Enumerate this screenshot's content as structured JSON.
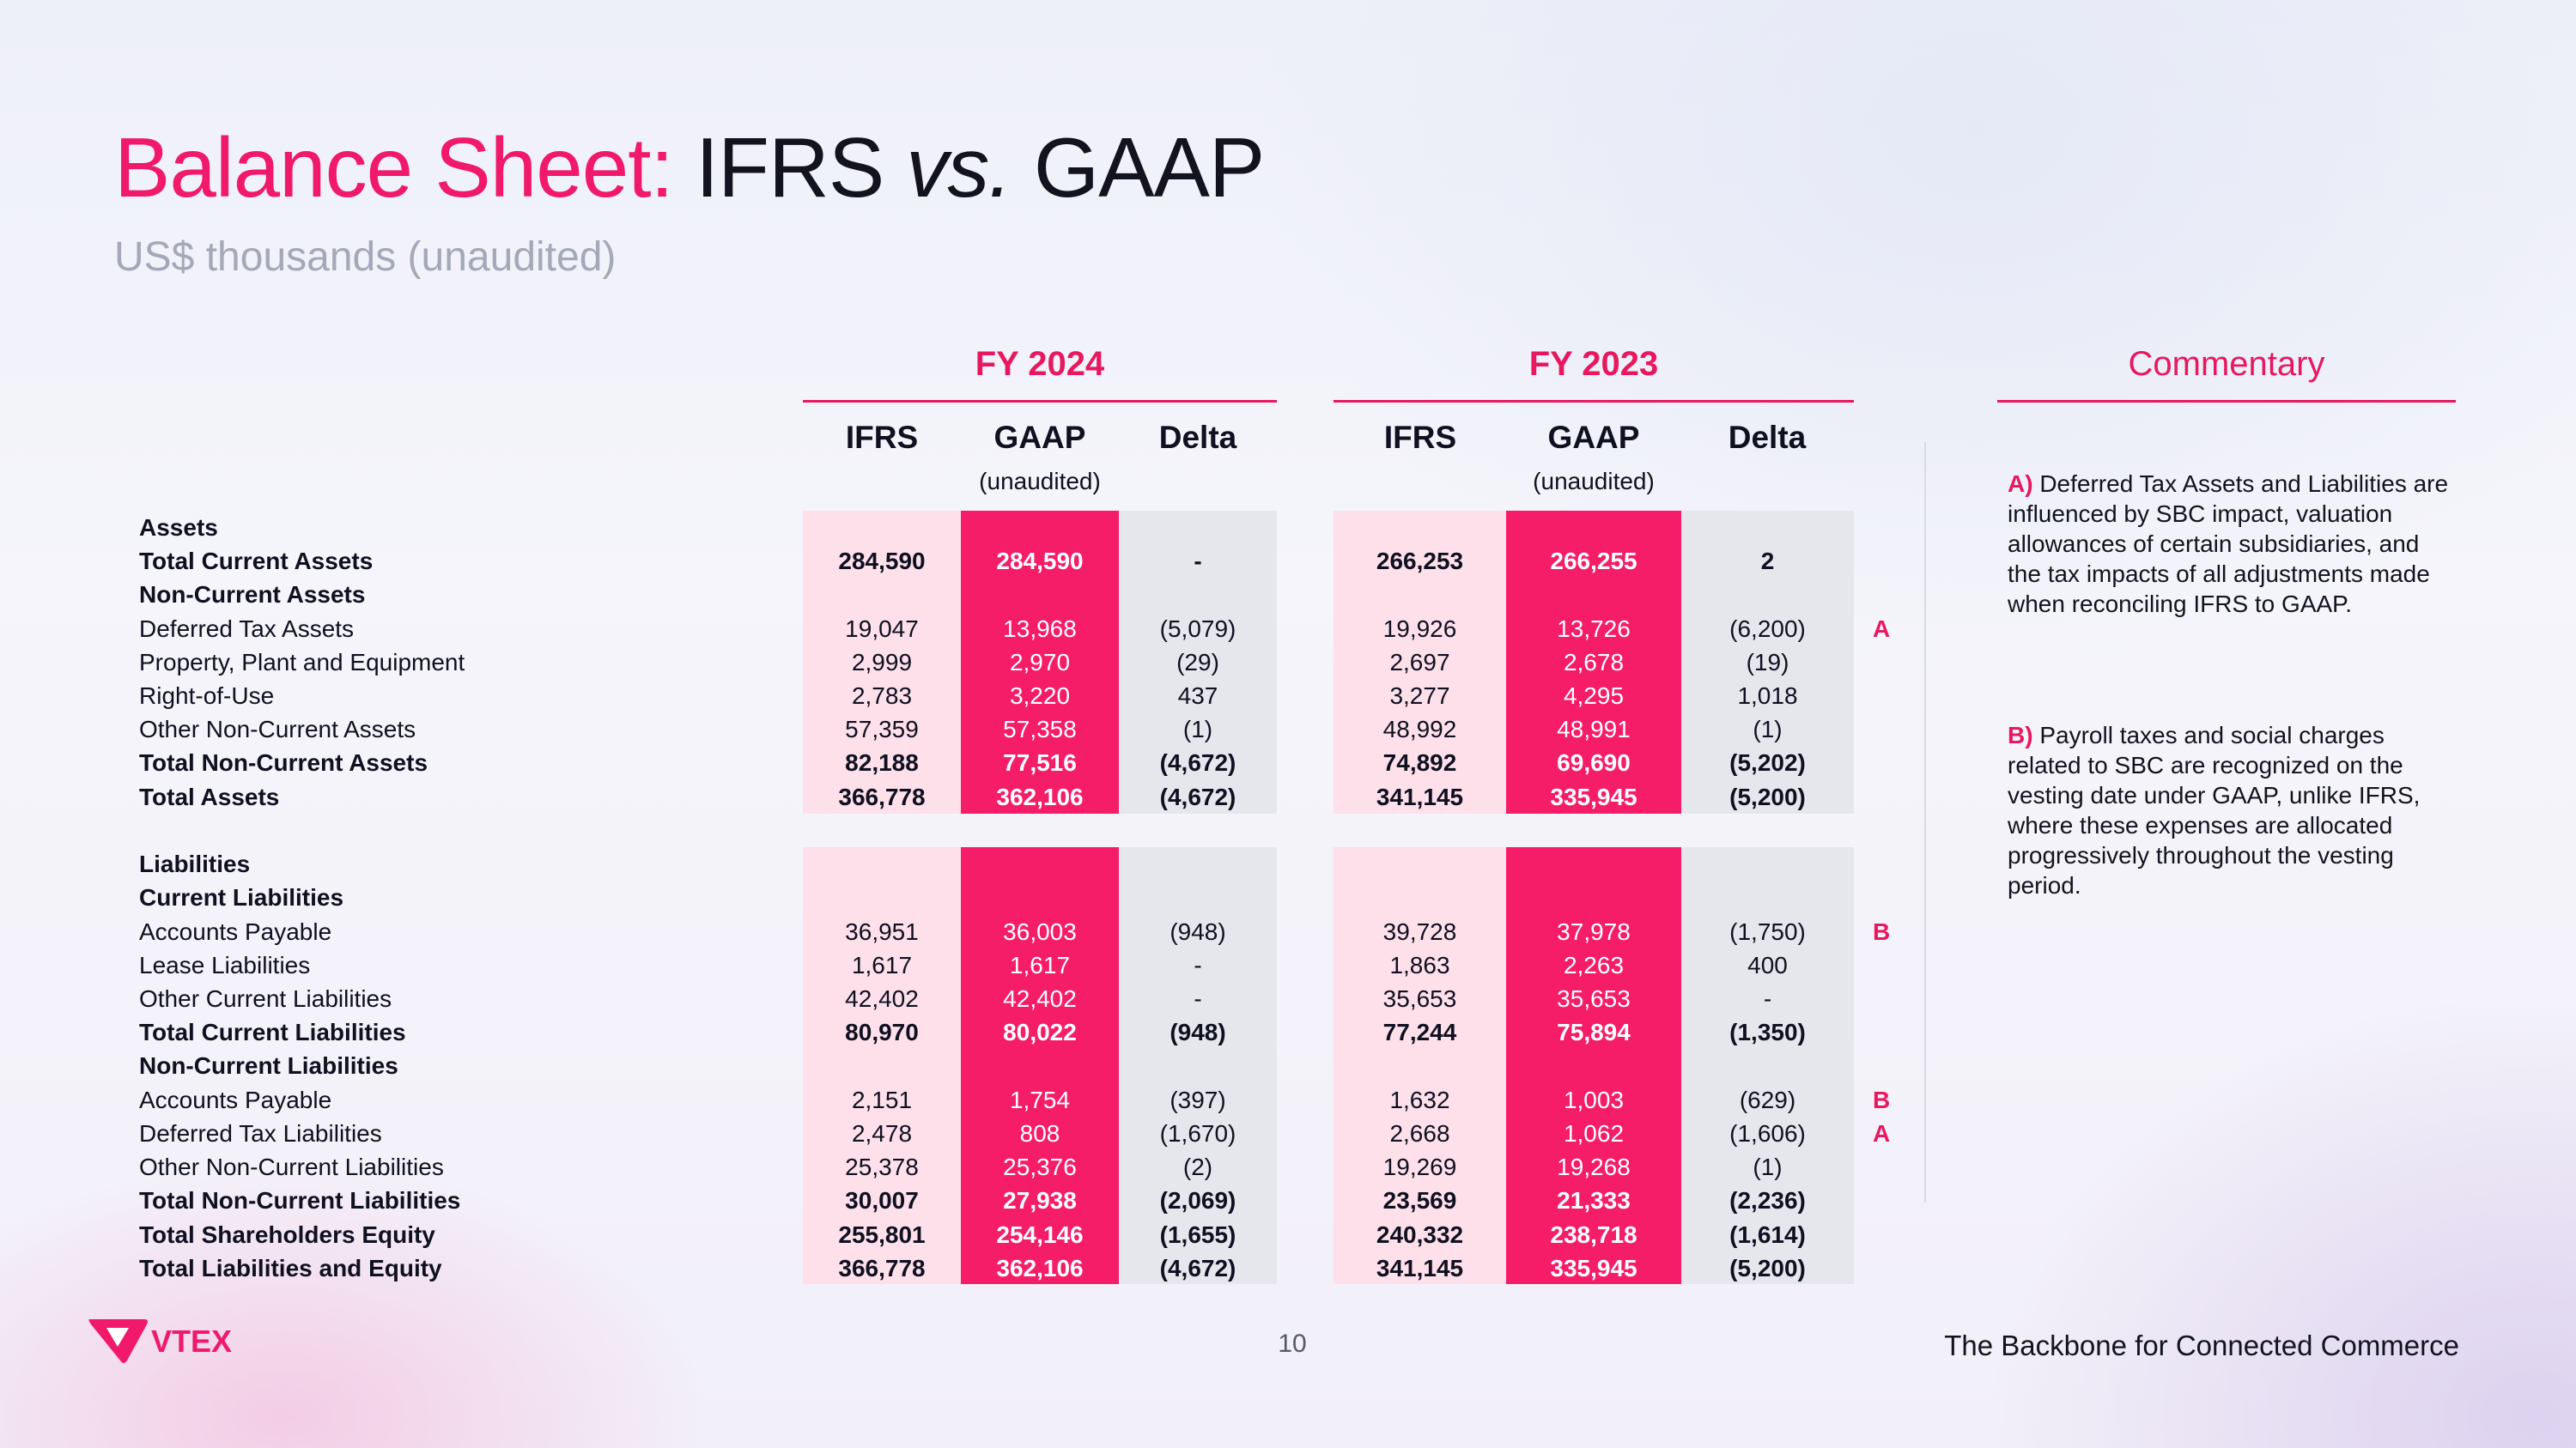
{
  "title": {
    "highlight": "Balance Sheet:",
    "part1": "IFRS",
    "vs": "vs.",
    "part2": "GAAP"
  },
  "subtitle": "US$ thousands (unaudited)",
  "periods": [
    {
      "label": "FY 2024",
      "cols": [
        "IFRS",
        "GAAP",
        "Delta"
      ],
      "gaap_note": "(unaudited)"
    },
    {
      "label": "FY 2023",
      "cols": [
        "IFRS",
        "GAAP",
        "Delta"
      ],
      "gaap_note": "(unaudited)"
    }
  ],
  "rows": [
    {
      "label": "Assets",
      "bold": true,
      "v": [
        "",
        "",
        "",
        "",
        "",
        ""
      ],
      "note": ""
    },
    {
      "label": "Total Current Assets",
      "bold": true,
      "v": [
        "284,590",
        "284,590",
        "-",
        "266,253",
        "266,255",
        "2"
      ],
      "note": ""
    },
    {
      "label": "Non-Current Assets",
      "bold": true,
      "v": [
        "",
        "",
        "",
        "",
        "",
        ""
      ],
      "note": ""
    },
    {
      "label": "Deferred Tax Assets",
      "bold": false,
      "v": [
        "19,047",
        "13,968",
        "(5,079)",
        "19,926",
        "13,726",
        "(6,200)"
      ],
      "note": "A"
    },
    {
      "label": "Property, Plant and Equipment",
      "bold": false,
      "v": [
        "2,999",
        "2,970",
        "(29)",
        "2,697",
        "2,678",
        "(19)"
      ],
      "note": ""
    },
    {
      "label": "Right-of-Use",
      "bold": false,
      "v": [
        "2,783",
        "3,220",
        "437",
        "3,277",
        "4,295",
        "1,018"
      ],
      "note": ""
    },
    {
      "label": "Other Non-Current Assets",
      "bold": false,
      "v": [
        "57,359",
        "57,358",
        "(1)",
        "48,992",
        "48,991",
        "(1)"
      ],
      "note": ""
    },
    {
      "label": "Total Non-Current Assets",
      "bold": true,
      "v": [
        "82,188",
        "77,516",
        "(4,672)",
        "74,892",
        "69,690",
        "(5,202)"
      ],
      "note": ""
    },
    {
      "label": "Total Assets",
      "bold": true,
      "v": [
        "366,778",
        "362,106",
        "(4,672)",
        "341,145",
        "335,945",
        "(5,200)"
      ],
      "note": ""
    },
    {
      "label": "Liabilities",
      "bold": true,
      "v": [
        "",
        "",
        "",
        "",
        "",
        ""
      ],
      "note": ""
    },
    {
      "label": "Current Liabilities",
      "bold": true,
      "v": [
        "",
        "",
        "",
        "",
        "",
        ""
      ],
      "note": ""
    },
    {
      "label": "Accounts Payable",
      "bold": false,
      "v": [
        "36,951",
        "36,003",
        "(948)",
        "39,728",
        "37,978",
        "(1,750)"
      ],
      "note": "B"
    },
    {
      "label": "Lease Liabilities",
      "bold": false,
      "v": [
        "1,617",
        "1,617",
        "-",
        "1,863",
        "2,263",
        "400"
      ],
      "note": ""
    },
    {
      "label": "Other Current Liabilities",
      "bold": false,
      "v": [
        "42,402",
        "42,402",
        "-",
        "35,653",
        "35,653",
        "-"
      ],
      "note": ""
    },
    {
      "label": "Total Current Liabilities",
      "bold": true,
      "v": [
        "80,970",
        "80,022",
        "(948)",
        "77,244",
        "75,894",
        "(1,350)"
      ],
      "note": ""
    },
    {
      "label": "Non-Current Liabilities",
      "bold": true,
      "v": [
        "",
        "",
        "",
        "",
        "",
        ""
      ],
      "note": ""
    },
    {
      "label": "Accounts Payable",
      "bold": false,
      "v": [
        "2,151",
        "1,754",
        "(397)",
        "1,632",
        "1,003",
        "(629)"
      ],
      "note": "B"
    },
    {
      "label": "Deferred Tax Liabilities",
      "bold": false,
      "v": [
        "2,478",
        "808",
        "(1,670)",
        "2,668",
        "1,062",
        "(1,606)"
      ],
      "note": "A"
    },
    {
      "label": "Other Non-Current Liabilities",
      "bold": false,
      "v": [
        "25,378",
        "25,376",
        "(2)",
        "19,269",
        "19,268",
        "(1)"
      ],
      "note": ""
    },
    {
      "label": "Total Non-Current Liabilities",
      "bold": true,
      "v": [
        "30,007",
        "27,938",
        "(2,069)",
        "23,569",
        "21,333",
        "(2,236)"
      ],
      "note": ""
    },
    {
      "label": "Total Shareholders Equity",
      "bold": true,
      "v": [
        "255,801",
        "254,146",
        "(1,655)",
        "240,332",
        "238,718",
        "(1,614)"
      ],
      "note": ""
    },
    {
      "label": "Total Liabilities and Equity",
      "bold": true,
      "v": [
        "366,778",
        "362,106",
        "(4,672)",
        "341,145",
        "335,945",
        "(5,200)"
      ],
      "note": ""
    }
  ],
  "commentary": {
    "title": "Commentary",
    "notes": [
      {
        "key": "A)",
        "text": "Deferred Tax Assets and Liabilities are influenced by SBC impact, valuation allowances of certain subsidiaries, and the tax impacts of all adjustments made when reconciling IFRS to GAAP."
      },
      {
        "key": "B)",
        "text": "Payroll taxes and social charges related to SBC are recognized on the vesting date under GAAP, unlike IFRS, where these expenses are allocated progressively throughout the vesting period."
      }
    ]
  },
  "footer": {
    "logo_text": "VTEX",
    "page": "10",
    "tagline": "The Backbone for Connected Commerce"
  },
  "colors": {
    "accent": "#e8185f",
    "gaap_fill": "#f51d68",
    "ifrs_fill": "#fde0ea",
    "delta_fill": "#e6e7ed"
  }
}
